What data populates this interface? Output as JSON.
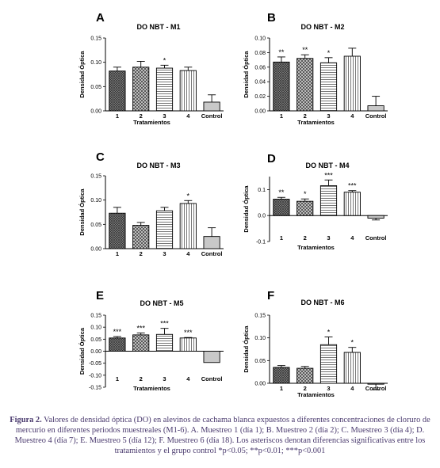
{
  "caption": {
    "label": "Figura 2.",
    "text": "Valores de densidad óptica (DO) en alevinos de cachama blanca expuestos a diferentes concentraciones de cloruro de mercurio en diferentes periodos muestreales (M1-6). A. Muestreo 1 (día 1); B. Muestreo 2 (día 2); C. Muestreo 3 (día 4); D. Muestreo 4 (día 7); E. Muestreo 5 (día 12); F. Muestreo 6 (día 18). Los asteriscos denotan diferencias significativas entre los tratamientos y el grupo control *p<0.05; **p<0.01; ***p<0.001"
  },
  "chart_data": [
    {
      "type": "bar",
      "panel": "A",
      "title": "DO NBT - M1",
      "xlabel": "Tratamientos",
      "ylabel": "Densidad Óptica",
      "categories": [
        "1",
        "2",
        "3",
        "4",
        "Control"
      ],
      "values": [
        0.082,
        0.09,
        0.088,
        0.083,
        0.018
      ],
      "errors": [
        0.008,
        0.012,
        0.006,
        0.007,
        0.015
      ],
      "significance": [
        "",
        "",
        "*",
        "",
        ""
      ],
      "yticks": [
        "0.00",
        "0.05",
        "0.10",
        "0.15"
      ],
      "ylim": [
        0,
        0.15
      ],
      "grid": false
    },
    {
      "type": "bar",
      "panel": "B",
      "title": "DO NBT - M2",
      "xlabel": "Tratamientos",
      "ylabel": "Densidad Óptica",
      "categories": [
        "1",
        "2",
        "3",
        "4",
        "Control"
      ],
      "values": [
        0.067,
        0.072,
        0.066,
        0.075,
        0.007
      ],
      "errors": [
        0.007,
        0.005,
        0.007,
        0.011,
        0.013
      ],
      "significance": [
        "**",
        "**",
        "*",
        "",
        ""
      ],
      "yticks": [
        "0.00",
        "0.02",
        "0.04",
        "0.06",
        "0.08",
        "0.10"
      ],
      "ylim": [
        0,
        0.1
      ],
      "grid": false
    },
    {
      "type": "bar",
      "panel": "C",
      "title": "DO NBT - M3",
      "xlabel": "",
      "ylabel": "Densidad Óptica",
      "categories": [
        "1",
        "2",
        "3",
        "4",
        "Control"
      ],
      "values": [
        0.073,
        0.048,
        0.078,
        0.093,
        0.025
      ],
      "errors": [
        0.012,
        0.006,
        0.007,
        0.006,
        0.018
      ],
      "significance": [
        "",
        "",
        "",
        "*",
        ""
      ],
      "yticks": [
        "0.00",
        "0.05",
        "0.10",
        "0.15"
      ],
      "ylim": [
        0,
        0.15
      ],
      "grid": false
    },
    {
      "type": "bar",
      "panel": "D",
      "title": "DO NBT - M4",
      "xlabel": "Tratamientos",
      "ylabel": "Densidad Óptica",
      "categories": [
        "1",
        "2",
        "3",
        "4",
        "Control"
      ],
      "values": [
        0.063,
        0.055,
        0.115,
        0.09,
        -0.01
      ],
      "errors": [
        0.007,
        0.009,
        0.022,
        0.006,
        0.007
      ],
      "significance": [
        "**",
        "*",
        "***",
        "***",
        ""
      ],
      "yticks": [
        "-0.1",
        "0.0",
        "0.1"
      ],
      "ylim": [
        -0.1,
        0.15
      ],
      "grid": false
    },
    {
      "type": "bar",
      "panel": "E",
      "title": "DO NBT - M5",
      "xlabel": "Tratamientos",
      "ylabel": "Densidad Óptica",
      "categories": [
        "1",
        "2",
        "3",
        "4",
        "Control"
      ],
      "values": [
        0.055,
        0.068,
        0.07,
        0.055,
        -0.047
      ],
      "errors": [
        0.006,
        0.008,
        0.025,
        0.002,
        0.0
      ],
      "significance": [
        "***",
        "***",
        "***",
        "***",
        ""
      ],
      "yticks": [
        "-0.15",
        "-0.10",
        "-0.05",
        "0.00",
        "0.05",
        "0.10",
        "0.15"
      ],
      "ylim": [
        -0.15,
        0.15
      ],
      "grid": false
    },
    {
      "type": "bar",
      "panel": "F",
      "title": "DO NBT - M6",
      "xlabel": "Tratamientos",
      "ylabel": "Densidad Óptica",
      "categories": [
        "1",
        "2",
        "3",
        "4",
        "Control"
      ],
      "values": [
        0.035,
        0.033,
        0.085,
        0.068,
        -0.002
      ],
      "errors": [
        0.004,
        0.004,
        0.017,
        0.011,
        0.012
      ],
      "significance": [
        "",
        "",
        "*",
        "*",
        ""
      ],
      "yticks": [
        "0.00",
        "0.05",
        "0.10",
        "0.15"
      ],
      "ylim": [
        0,
        0.15
      ],
      "grid": false
    }
  ]
}
